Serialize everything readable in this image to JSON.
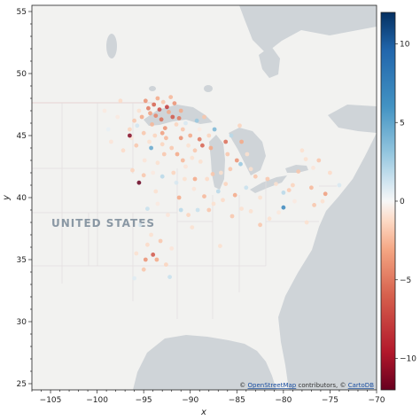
{
  "chart_data": {
    "type": "scatter",
    "xlabel": "x",
    "ylabel": "y",
    "xlim": [
      -107,
      -70
    ],
    "ylim": [
      24.5,
      55.5
    ],
    "xticks": [
      -105,
      -100,
      -95,
      -90,
      -85,
      -80,
      -75,
      -70
    ],
    "yticks": [
      25,
      30,
      35,
      40,
      45,
      50,
      55
    ],
    "colorbar": {
      "cmap": "RdBu",
      "min": -12,
      "max": 12,
      "ticks": [
        -10,
        -5,
        0,
        5,
        10
      ]
    },
    "basemap_label": "UNITED STATES",
    "attribution": {
      "prefix": "© ",
      "osm": "OpenStreetMap",
      "middle": " contributors, © ",
      "carto": "CartoDB"
    },
    "points": [
      [
        -96.5,
        45.5,
        -1.5
      ],
      [
        -96.3,
        44.8,
        -0.8
      ],
      [
        -96.0,
        46.2,
        -2.0
      ],
      [
        -95.7,
        45.8,
        1.2
      ],
      [
        -95.5,
        47.0,
        -1.0
      ],
      [
        -95.2,
        46.5,
        -3.0
      ],
      [
        -95.0,
        45.2,
        -2.0
      ],
      [
        -94.8,
        47.8,
        -4.0
      ],
      [
        -94.5,
        47.2,
        -5.0
      ],
      [
        -94.3,
        46.8,
        -3.5
      ],
      [
        -94.1,
        45.9,
        -2.5
      ],
      [
        -93.9,
        47.5,
        -6.0
      ],
      [
        -93.7,
        46.6,
        -4.5
      ],
      [
        -93.5,
        48.0,
        -3.0
      ],
      [
        -93.3,
        47.1,
        -7.0
      ],
      [
        -93.1,
        46.3,
        -5.5
      ],
      [
        -92.9,
        47.7,
        -2.0
      ],
      [
        -92.7,
        45.6,
        -4.0
      ],
      [
        -92.5,
        47.3,
        -8.0
      ],
      [
        -92.3,
        46.9,
        -3.0
      ],
      [
        -92.1,
        48.1,
        -2.5
      ],
      [
        -91.9,
        46.5,
        -6.5
      ],
      [
        -91.7,
        47.6,
        -4.0
      ],
      [
        -91.5,
        45.9,
        -1.5
      ],
      [
        -91.2,
        46.4,
        -5.0
      ],
      [
        -91.0,
        47.0,
        -3.0
      ],
      [
        -90.8,
        45.5,
        -2.0
      ],
      [
        -90.5,
        46.0,
        1.0
      ],
      [
        -93.0,
        45.2,
        -3.5
      ],
      [
        -92.6,
        44.8,
        -2.5
      ],
      [
        -93.8,
        45.0,
        -1.5
      ],
      [
        -94.4,
        44.5,
        -1.0
      ],
      [
        -96.5,
        45.0,
        -11.0
      ],
      [
        -95.8,
        44.2,
        -2.0
      ],
      [
        -97.2,
        43.8,
        -1.2
      ],
      [
        -97.8,
        46.5,
        -0.6
      ],
      [
        -98.5,
        44.5,
        -0.8
      ],
      [
        -99.2,
        47.0,
        -0.6
      ],
      [
        -98.8,
        45.5,
        0.5
      ],
      [
        -97.5,
        47.8,
        -1.2
      ],
      [
        -94.2,
        44.0,
        4.8
      ],
      [
        -93.5,
        42.8,
        -1.0
      ],
      [
        -92.8,
        43.5,
        -2.0
      ],
      [
        -94.9,
        43.0,
        -0.8
      ],
      [
        -96.2,
        42.2,
        -1.5
      ],
      [
        -95.5,
        41.2,
        -12.0
      ],
      [
        -93.0,
        41.7,
        2.0
      ],
      [
        -91.8,
        42.0,
        -1.5
      ],
      [
        -90.5,
        42.5,
        -0.8
      ],
      [
        -91.4,
        43.5,
        -3.0
      ],
      [
        -90.2,
        44.2,
        -1.0
      ],
      [
        -89.5,
        43.8,
        -2.0
      ],
      [
        -89.0,
        45.5,
        -0.5
      ],
      [
        -88.5,
        46.5,
        -2.0
      ],
      [
        -88.0,
        45.0,
        -1.5
      ],
      [
        -87.8,
        44.0,
        -3.0
      ],
      [
        -89.3,
        46.2,
        3.0
      ],
      [
        -88.9,
        42.9,
        -1.0
      ],
      [
        -87.6,
        41.9,
        -2.0
      ],
      [
        -88.2,
        41.5,
        -1.2
      ],
      [
        -89.6,
        40.7,
        -0.8
      ],
      [
        -88.5,
        40.1,
        -2.5
      ],
      [
        -87.5,
        39.5,
        -1.0
      ],
      [
        -89.2,
        39.0,
        1.5
      ],
      [
        -90.2,
        38.6,
        -1.5
      ],
      [
        -89.8,
        37.6,
        -1.0
      ],
      [
        -91.2,
        40.0,
        -3.0
      ],
      [
        -92.4,
        38.6,
        -0.8
      ],
      [
        -91.0,
        39.0,
        2.0
      ],
      [
        -93.5,
        39.5,
        -0.6
      ],
      [
        -94.6,
        39.1,
        1.5
      ],
      [
        -95.4,
        37.8,
        0.8
      ],
      [
        -94.2,
        37.0,
        -1.0
      ],
      [
        -93.2,
        36.5,
        -2.0
      ],
      [
        -94.0,
        35.4,
        -6.5
      ],
      [
        -93.6,
        35.0,
        -3.0
      ],
      [
        -92.6,
        34.6,
        -1.5
      ],
      [
        -92.0,
        35.9,
        -0.8
      ],
      [
        -95.8,
        35.5,
        -1.0
      ],
      [
        -95.0,
        34.2,
        -2.0
      ],
      [
        -96.0,
        33.5,
        0.8
      ],
      [
        -92.2,
        33.6,
        1.5
      ],
      [
        -94.6,
        36.2,
        -1.2
      ],
      [
        -94.8,
        35.0,
        -4.0
      ],
      [
        -86.8,
        36.1,
        -1.0
      ],
      [
        -85.5,
        38.5,
        -2.0
      ],
      [
        -84.5,
        39.1,
        -1.0
      ],
      [
        -85.2,
        40.2,
        -3.0
      ],
      [
        -86.2,
        41.1,
        -1.5
      ],
      [
        -85.7,
        42.3,
        -2.0
      ],
      [
        -84.6,
        42.7,
        3.0
      ],
      [
        -83.9,
        43.5,
        -1.0
      ],
      [
        -84.5,
        44.5,
        -3.0
      ],
      [
        -85.6,
        45.0,
        2.0
      ],
      [
        -84.7,
        45.8,
        -1.5
      ],
      [
        -86.2,
        44.5,
        -5.5
      ],
      [
        -85.0,
        43.0,
        -4.0
      ],
      [
        -86.0,
        43.5,
        -2.0
      ],
      [
        -83.5,
        42.3,
        -1.0
      ],
      [
        -83.0,
        41.7,
        -2.0
      ],
      [
        -82.5,
        40.0,
        -1.0
      ],
      [
        -81.7,
        41.5,
        -2.0
      ],
      [
        -80.8,
        41.1,
        -1.0
      ],
      [
        -80.0,
        40.4,
        2.0
      ],
      [
        -79.0,
        41.0,
        -1.5
      ],
      [
        -78.4,
        42.1,
        -2.0
      ],
      [
        -77.6,
        43.1,
        -1.0
      ],
      [
        -76.2,
        43.0,
        -2.0
      ],
      [
        -75.0,
        42.0,
        -1.2
      ],
      [
        -74.0,
        41.0,
        1.0
      ],
      [
        -75.5,
        40.3,
        -3.5
      ],
      [
        -76.7,
        39.4,
        -2.0
      ],
      [
        -77.5,
        38.0,
        -1.0
      ],
      [
        -78.8,
        39.7,
        -0.6
      ],
      [
        -80.0,
        39.2,
        7.0
      ],
      [
        -81.5,
        38.3,
        -1.0
      ],
      [
        -82.5,
        37.8,
        -2.0
      ],
      [
        -83.5,
        38.9,
        -1.0
      ],
      [
        -80.5,
        38.8,
        -0.7
      ],
      [
        -79.4,
        40.6,
        -1.8
      ],
      [
        -75.8,
        39.7,
        -1.0
      ],
      [
        -77.0,
        40.8,
        -2.5
      ],
      [
        -78.0,
        43.8,
        -1.0
      ],
      [
        -76.8,
        42.4,
        -0.8
      ],
      [
        -84.0,
        40.8,
        1.5
      ],
      [
        -86.5,
        39.8,
        -1.2
      ],
      [
        -87.0,
        40.5,
        2.0
      ],
      [
        -88.0,
        39.0,
        -2.0
      ],
      [
        -92.0,
        44.0,
        -2.0
      ],
      [
        -91.0,
        44.8,
        -4.0
      ],
      [
        -90.0,
        45.0,
        -3.0
      ],
      [
        -89.0,
        44.7,
        -5.0
      ],
      [
        -93.0,
        44.3,
        -1.5
      ],
      [
        -94.0,
        42.0,
        -0.6
      ],
      [
        -95.0,
        41.8,
        -2.0
      ],
      [
        -91.5,
        41.2,
        1.0
      ],
      [
        -90.6,
        41.5,
        -1.0
      ],
      [
        -89.5,
        41.5,
        -3.0
      ],
      [
        -86.7,
        42.0,
        -1.0
      ],
      [
        -87.4,
        45.5,
        4.0
      ],
      [
        -88.7,
        44.2,
        -6.0
      ],
      [
        -89.8,
        43.2,
        -1.0
      ],
      [
        -90.8,
        43.0,
        -2.5
      ],
      [
        -93.7,
        40.5,
        -1.0
      ]
    ]
  }
}
